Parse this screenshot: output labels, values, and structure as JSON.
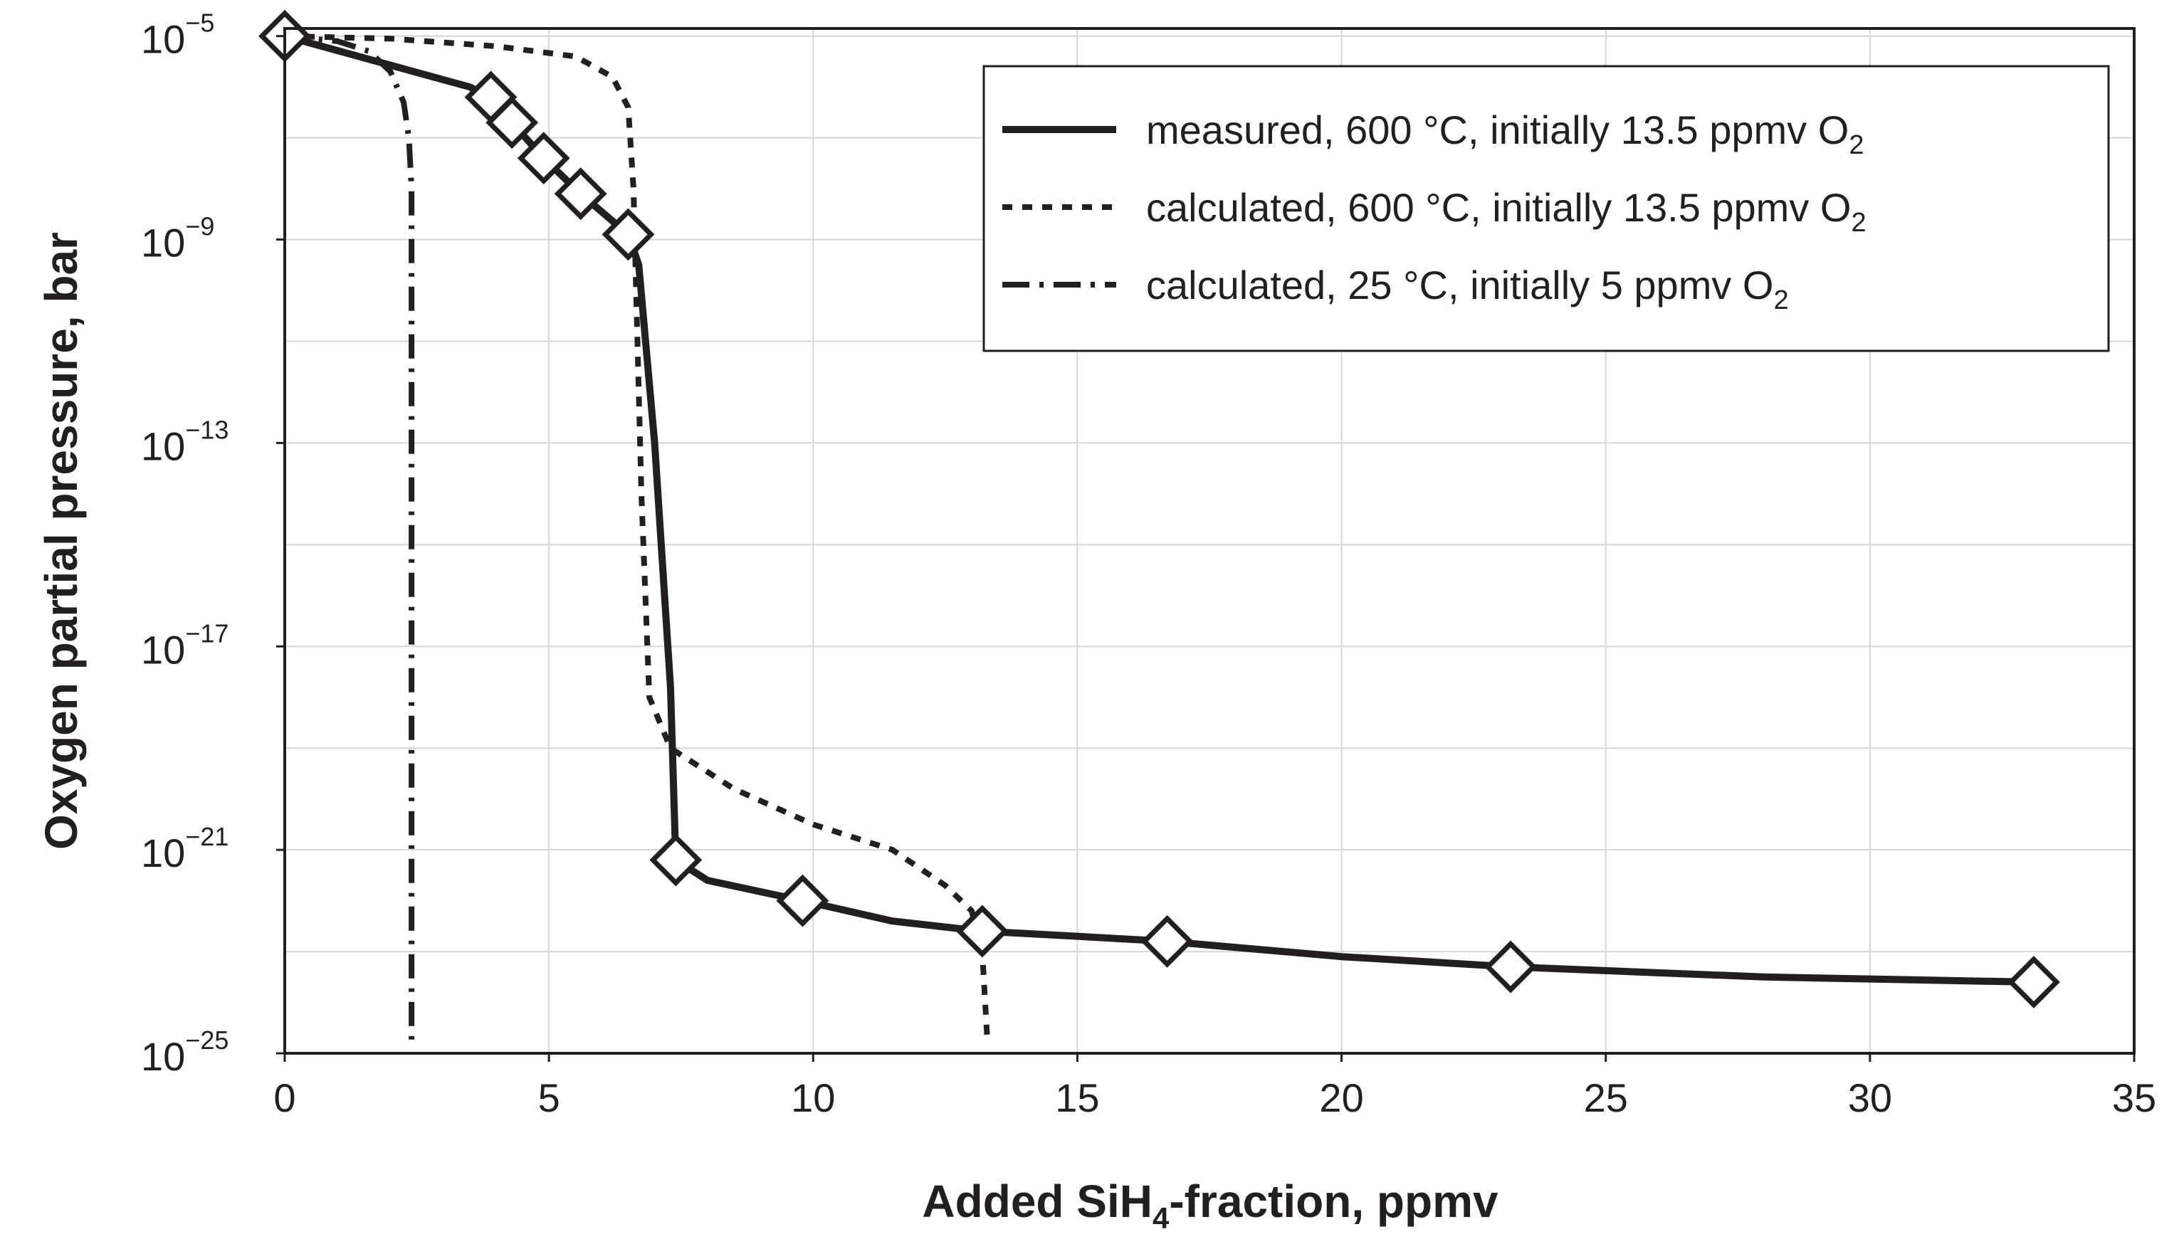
{
  "chart_data": {
    "type": "line",
    "title": "",
    "xlabel": {
      "main": "Added SiH",
      "sub": "4",
      "rest": "-fraction, ppmv"
    },
    "ylabel": "Oxygen partial pressure, bar",
    "xlim": [
      0,
      35
    ],
    "ylim_exp": [
      -25,
      -5
    ],
    "y_scale": "log",
    "grid": true,
    "x_ticks": [
      0,
      5,
      10,
      15,
      20,
      25,
      30,
      35
    ],
    "x_tick_labels": [
      "0",
      "5",
      "10",
      "15",
      "20",
      "25",
      "30",
      "35"
    ],
    "y_ticks": [
      {
        "exp": -5,
        "base": "10",
        "sup": "−5"
      },
      {
        "exp": -9,
        "base": "10",
        "sup": "−9"
      },
      {
        "exp": -13,
        "base": "10",
        "sup": "−13"
      },
      {
        "exp": -17,
        "base": "10",
        "sup": "−17"
      },
      {
        "exp": -21,
        "base": "10",
        "sup": "−21"
      },
      {
        "exp": -25,
        "base": "10",
        "sup": "−25"
      }
    ],
    "legend_position": "top-right",
    "series": [
      {
        "name": "measured",
        "style": "solid",
        "color": "#231f20",
        "label": {
          "main": "measured, 600 °C, initially 13.5 ppmv O",
          "sub": "2"
        },
        "x": [
          0,
          3.5,
          3.9,
          4.3,
          4.9,
          5.6,
          6.5,
          6.7,
          7.0,
          7.3,
          7.4,
          8.0,
          9.8,
          11.5,
          13.2,
          15.0,
          16.7,
          20.0,
          23.2,
          28.0,
          33.1
        ],
        "log10_y": [
          -5.0,
          -6.0,
          -6.2,
          -6.7,
          -7.4,
          -8.1,
          -8.9,
          -9.5,
          -13.0,
          -17.8,
          -21.2,
          -21.6,
          -22.0,
          -22.4,
          -22.6,
          -22.7,
          -22.8,
          -23.1,
          -23.3,
          -23.5,
          -23.6
        ]
      },
      {
        "name": "calculated-600",
        "style": "dashed",
        "color": "#231f20",
        "label": {
          "main": "calculated, 600 °C, initially 13.5 ppmv O",
          "sub": "2"
        },
        "x": [
          0,
          2.0,
          4.0,
          5.5,
          6.2,
          6.5,
          6.6,
          6.65,
          6.75,
          6.9,
          7.3,
          8.5,
          10.0,
          11.5,
          12.5,
          13.0,
          13.2,
          13.3
        ],
        "log10_y": [
          -5.0,
          -5.05,
          -5.2,
          -5.4,
          -5.8,
          -6.4,
          -8.0,
          -10.0,
          -14.0,
          -18.0,
          -19.0,
          -19.8,
          -20.5,
          -21.0,
          -21.7,
          -22.2,
          -23.0,
          -24.8
        ]
      },
      {
        "name": "calculated-25",
        "style": "dash-dot",
        "color": "#231f20",
        "label": {
          "main": "calculated, 25 °C, initially 5 ppmv O",
          "sub": "2"
        },
        "x": [
          0,
          1.0,
          1.6,
          2.0,
          2.25,
          2.35,
          2.4,
          2.4,
          2.4
        ],
        "log10_y": [
          -5.0,
          -5.1,
          -5.3,
          -5.7,
          -6.3,
          -7.0,
          -8.0,
          -15.0,
          -24.8
        ]
      }
    ],
    "markers": {
      "series": "measured",
      "shape": "diamond",
      "x": [
        0,
        3.9,
        4.3,
        4.9,
        5.6,
        6.5,
        7.4,
        9.8,
        13.2,
        16.7,
        23.2,
        33.1
      ],
      "log10_y": [
        -5.0,
        -6.2,
        -6.7,
        -7.4,
        -8.1,
        -8.9,
        -21.2,
        -22.0,
        -22.6,
        -22.8,
        -23.3,
        -23.6
      ]
    }
  }
}
